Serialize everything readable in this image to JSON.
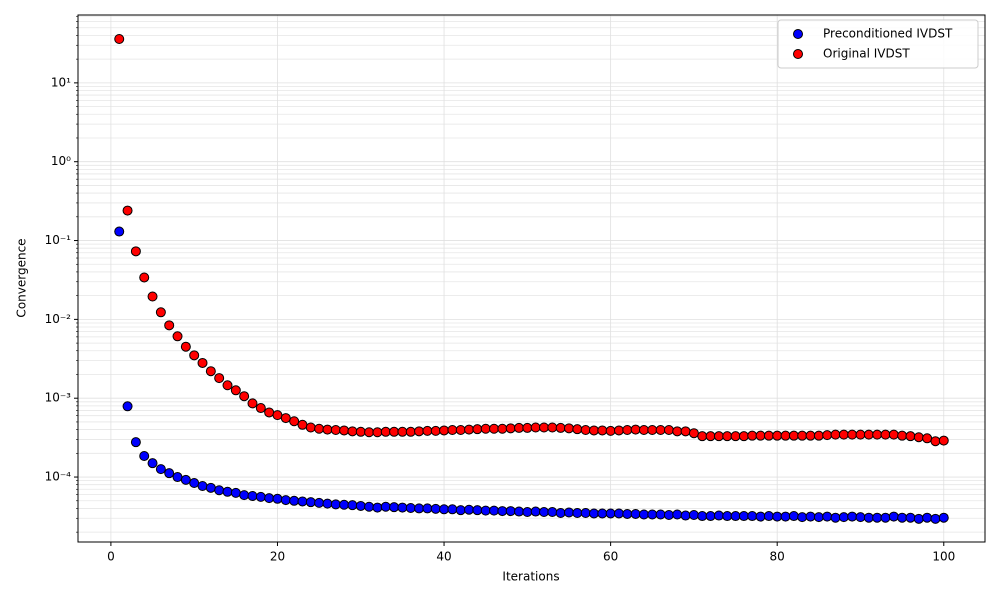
{
  "chart_data": {
    "type": "scatter",
    "xlabel": "Iterations",
    "ylabel": "Convergence",
    "x": [
      1,
      2,
      3,
      4,
      5,
      6,
      7,
      8,
      9,
      10,
      11,
      12,
      13,
      14,
      15,
      16,
      17,
      18,
      19,
      20,
      21,
      22,
      23,
      24,
      25,
      26,
      27,
      28,
      29,
      30,
      31,
      32,
      33,
      34,
      35,
      36,
      37,
      38,
      39,
      40,
      41,
      42,
      43,
      44,
      45,
      46,
      47,
      48,
      49,
      50,
      51,
      52,
      53,
      54,
      55,
      56,
      57,
      58,
      59,
      60,
      61,
      62,
      63,
      64,
      65,
      66,
      67,
      68,
      69,
      70,
      71,
      72,
      73,
      74,
      75,
      76,
      77,
      78,
      79,
      80,
      81,
      82,
      83,
      84,
      85,
      86,
      87,
      88,
      89,
      90,
      91,
      92,
      93,
      94,
      95,
      96,
      97,
      98,
      99,
      100
    ],
    "series": [
      {
        "name": "Preconditioned IVDST",
        "color": "#0000ff",
        "edgecolor": "#000000",
        "values": [
          0.13,
          0.00079,
          0.000277,
          0.000185,
          0.00015,
          0.000126,
          0.000112,
          0.0001,
          9.2e-05,
          8.4e-05,
          7.7e-05,
          7.3e-05,
          6.8e-05,
          6.5e-05,
          6.3e-05,
          5.9e-05,
          5.75e-05,
          5.6e-05,
          5.4e-05,
          5.3e-05,
          5.1e-05,
          5e-05,
          4.9e-05,
          4.8e-05,
          4.7e-05,
          4.6e-05,
          4.5e-05,
          4.45e-05,
          4.4e-05,
          4.3e-05,
          4.2e-05,
          4.1e-05,
          4.2e-05,
          4.15e-05,
          4.1e-05,
          4.05e-05,
          4e-05,
          4e-05,
          3.95e-05,
          3.9e-05,
          3.9e-05,
          3.8e-05,
          3.85e-05,
          3.8e-05,
          3.75e-05,
          3.75e-05,
          3.7e-05,
          3.7e-05,
          3.65e-05,
          3.6e-05,
          3.65e-05,
          3.6e-05,
          3.6e-05,
          3.5e-05,
          3.55e-05,
          3.5e-05,
          3.5e-05,
          3.45e-05,
          3.45e-05,
          3.45e-05,
          3.45e-05,
          3.4e-05,
          3.4e-05,
          3.35e-05,
          3.35e-05,
          3.35e-05,
          3.3e-05,
          3.35e-05,
          3.25e-05,
          3.3e-05,
          3.2e-05,
          3.2e-05,
          3.25e-05,
          3.2e-05,
          3.2e-05,
          3.2e-05,
          3.2e-05,
          3.15e-05,
          3.2e-05,
          3.15e-05,
          3.15e-05,
          3.2e-05,
          3.1e-05,
          3.15e-05,
          3.1e-05,
          3.15e-05,
          3.05e-05,
          3.1e-05,
          3.15e-05,
          3.1e-05,
          3.05e-05,
          3.05e-05,
          3.05e-05,
          3.15e-05,
          3.05e-05,
          3.05e-05,
          2.95e-05,
          3.05e-05,
          2.95e-05,
          3.05e-05
        ]
      },
      {
        "name": "Original IVDST",
        "color": "#ff0000",
        "edgecolor": "#000000",
        "values": [
          36,
          0.24,
          0.073,
          0.034,
          0.0195,
          0.0123,
          0.0084,
          0.0061,
          0.0045,
          0.0035,
          0.0028,
          0.0022,
          0.0018,
          0.00146,
          0.00126,
          0.00106,
          0.00086,
          0.00075,
          0.00066,
          0.00061,
          0.00056,
          0.00051,
          0.00046,
          0.000425,
          0.00041,
          0.0004,
          0.000395,
          0.00039,
          0.00038,
          0.000375,
          0.00037,
          0.00037,
          0.000375,
          0.000375,
          0.000375,
          0.000375,
          0.00038,
          0.000385,
          0.000385,
          0.00039,
          0.000395,
          0.000395,
          0.0004,
          0.000405,
          0.00041,
          0.00041,
          0.00041,
          0.000415,
          0.00042,
          0.00042,
          0.000425,
          0.000425,
          0.000425,
          0.00042,
          0.000415,
          0.000405,
          0.000395,
          0.00039,
          0.00039,
          0.000385,
          0.00039,
          0.000395,
          0.0004,
          0.000395,
          0.000395,
          0.000395,
          0.000395,
          0.00038,
          0.00038,
          0.00036,
          0.00033,
          0.00033,
          0.00033,
          0.00033,
          0.00033,
          0.00033,
          0.000335,
          0.000335,
          0.000335,
          0.000335,
          0.000335,
          0.000335,
          0.000335,
          0.000335,
          0.000335,
          0.00034,
          0.000345,
          0.000345,
          0.000345,
          0.000345,
          0.000345,
          0.000345,
          0.000345,
          0.000345,
          0.000335,
          0.00033,
          0.00032,
          0.00031,
          0.000285,
          0.00029
        ]
      }
    ],
    "xlim": [
      -3.95,
      104.95
    ],
    "xticks": [
      0,
      20,
      40,
      60,
      80,
      100
    ],
    "ylim": [
      1.5e-05,
      72.6
    ],
    "yscale": "log",
    "yticks": [
      {
        "value": 0.0001,
        "label": "10⁻⁴"
      },
      {
        "value": 0.001,
        "label": "10⁻³"
      },
      {
        "value": 0.01,
        "label": "10⁻²"
      },
      {
        "value": 0.1,
        "label": "10⁻¹"
      },
      {
        "value": 1,
        "label": "10⁰"
      },
      {
        "value": 10,
        "label": "10¹"
      }
    ],
    "yminorticks": [
      2e-05,
      3e-05,
      4e-05,
      5e-05,
      6e-05,
      7e-05,
      8e-05,
      9e-05,
      0.0002,
      0.0003,
      0.0004,
      0.0005,
      0.0006,
      0.0007,
      0.0008,
      0.0009,
      0.002,
      0.003,
      0.004,
      0.005,
      0.006,
      0.007,
      0.008,
      0.009,
      0.02,
      0.03,
      0.04,
      0.05,
      0.06,
      0.07,
      0.08,
      0.09,
      0.2,
      0.3,
      0.4,
      0.5,
      0.6,
      0.7,
      0.8,
      0.9,
      2,
      3,
      4,
      5,
      6,
      7,
      8,
      9,
      20,
      30,
      40,
      50,
      60,
      70
    ],
    "grid": true,
    "legend": "upper right"
  }
}
